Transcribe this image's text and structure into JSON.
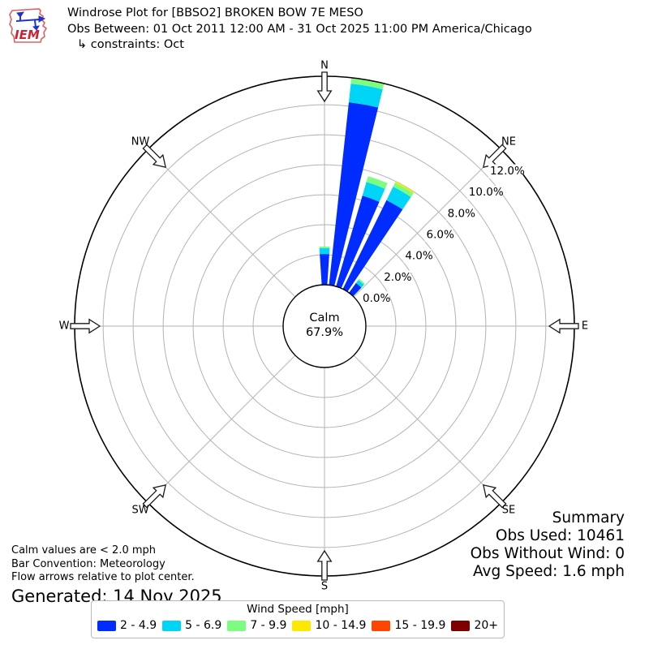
{
  "header": {
    "logo_text": "IEM",
    "title": "Windrose Plot for [BBSO2] BROKEN BOW 7E MESO",
    "subtitle": "Obs Between: 01 Oct 2011 12:00 AM - 31 Oct 2025 11:00 PM America/Chicago",
    "constraints": "↳ constraints: Oct"
  },
  "chart_data": {
    "type": "windrose-polar-stacked-bar",
    "compass_labels": [
      "N",
      "NE",
      "E",
      "SE",
      "S",
      "SW",
      "W",
      "NW"
    ],
    "radial_ticks_pct": [
      0,
      2,
      4,
      6,
      8,
      10,
      12
    ],
    "radial_tick_labels": [
      "0.0%",
      "2.0%",
      "4.0%",
      "6.0%",
      "8.0%",
      "10.0%",
      "12.0%"
    ],
    "rmax_pct": 13.9,
    "sector_width_deg": 10,
    "calm": {
      "label": "Calm",
      "value": "67.9%"
    },
    "directions_deg": [
      0,
      10,
      20,
      30,
      40
    ],
    "series": [
      {
        "name": "2 - 4.9",
        "color": "#012cff",
        "values": [
          2.05,
          12.25,
          6.3,
          6.6,
          0.8
        ]
      },
      {
        "name": "5 - 6.9",
        "color": "#00d5f7",
        "values": [
          0.4,
          1.25,
          0.95,
          1.0,
          0.25
        ]
      },
      {
        "name": "7 - 9.9",
        "color": "#7cfd7f",
        "values": [
          0.1,
          0.4,
          0.4,
          0.3,
          0.1
        ]
      },
      {
        "name": "10 - 14.9",
        "color": "#fde801",
        "values": [
          0.0,
          0.0,
          0.0,
          0.1,
          0.0
        ]
      },
      {
        "name": "15 - 19.9",
        "color": "#ff4503",
        "values": [
          0.0,
          0.0,
          0.0,
          0.0,
          0.0
        ]
      },
      {
        "name": "20+",
        "color": "#7e0100",
        "values": [
          0.0,
          0.0,
          0.0,
          0.0,
          0.0
        ]
      }
    ],
    "legend_title": "Wind Speed [mph]",
    "grid_color": "#b3b3b3",
    "outline_color": "#000000"
  },
  "notes": {
    "calm_note": "Calm values are < 2.0 mph",
    "bar_convention": "Bar Convention: Meteorology",
    "flow_note": "Flow arrows relative to plot center.",
    "generated": "Generated: 14 Nov 2025"
  },
  "summary": {
    "title": "Summary",
    "obs_used": "Obs Used: 10461",
    "obs_without_wind": "Obs Without Wind: 0",
    "avg_speed": "Avg Speed: 1.6 mph"
  }
}
